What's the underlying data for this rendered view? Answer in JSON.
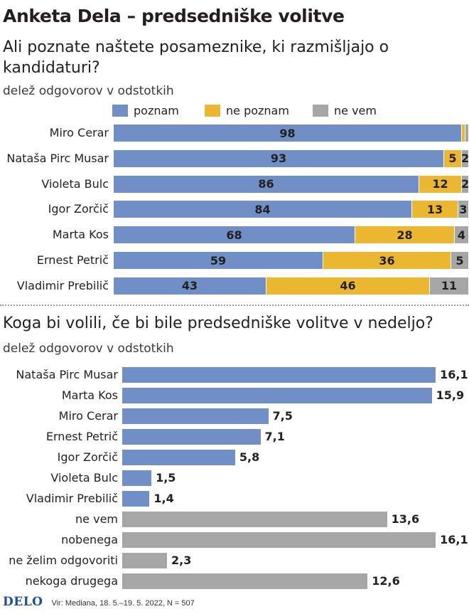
{
  "header": {
    "title": "Anketa Dela – predsedniške volitve",
    "question1": "Ali poznate naštete posameznike, ki razmišljajo o kandidaturi?",
    "subtitle1": "delež odgovorov v odstotkih",
    "question2": "Koga bi volili, če bi bile predsedniške volitve v nedeljo?",
    "subtitle2": "delež odgovorov v odstotkih"
  },
  "colors": {
    "blue": "#6f8fc6",
    "yellow": "#ebb731",
    "gray": "#a6a6a6"
  },
  "legend": [
    {
      "label": "poznam",
      "color": "#6f8fc6"
    },
    {
      "label": "ne poznam",
      "color": "#ebb731"
    },
    {
      "label": "ne vem",
      "color": "#a6a6a6"
    }
  ],
  "chart_data": [
    {
      "type": "bar",
      "orientation": "horizontal",
      "stacked": true,
      "title": "Ali poznate naštete posameznike, ki razmišljajo o kandidaturi?",
      "ylabel": "delež odgovorov v odstotkih",
      "categories": [
        "Miro Cerar",
        "Nataša Pirc Musar",
        "Violeta Bulc",
        "Igor Zorčič",
        "Marta Kos",
        "Ernest Petrič",
        "Vladimir Prebilič"
      ],
      "series": [
        {
          "name": "poznam",
          "values": [
            98,
            93,
            86,
            84,
            68,
            59,
            43
          ],
          "labels": [
            "98",
            "93",
            "86",
            "84",
            "68",
            "59",
            "43"
          ]
        },
        {
          "name": "ne poznam",
          "values": [
            1,
            5,
            12,
            13,
            28,
            36,
            46
          ],
          "labels": [
            "",
            "5",
            "12",
            "13",
            "28",
            "36",
            "46"
          ]
        },
        {
          "name": "ne vem",
          "values": [
            1,
            2,
            2,
            3,
            4,
            5,
            11
          ],
          "labels": [
            "",
            "2",
            "2",
            "3",
            "4",
            "5",
            "11"
          ]
        }
      ],
      "xlim": [
        0,
        100
      ]
    },
    {
      "type": "bar",
      "orientation": "horizontal",
      "title": "Koga bi volili, če bi bile predsedniške volitve v nedeljo?",
      "ylabel": "delež odgovorov v odstotkih",
      "categories": [
        "Nataša Pirc Musar",
        "Marta Kos",
        "Miro Cerar",
        "Ernest Petrič",
        "Igor Zorčič",
        "Violeta Bulc",
        "Vladimir Prebilič",
        "ne vem",
        "nobenega",
        "ne želim odgovoriti",
        "nekoga drugega"
      ],
      "values": [
        16.1,
        15.9,
        7.5,
        7.1,
        5.8,
        1.5,
        1.4,
        13.6,
        16.1,
        2.3,
        12.6
      ],
      "value_labels": [
        "16,1",
        "15,9",
        "7,5",
        "7,1",
        "5,8",
        "1,5",
        "1,4",
        "13,6",
        "16,1",
        "2,3",
        "12,6"
      ],
      "bar_colors": [
        "blue",
        "blue",
        "blue",
        "blue",
        "blue",
        "blue",
        "blue",
        "gray",
        "gray",
        "gray",
        "gray"
      ]
    }
  ],
  "footer": {
    "logo": "DELO",
    "source": "Vir: Mediana, 18. 5.–19. 5. 2022, N = 507"
  }
}
